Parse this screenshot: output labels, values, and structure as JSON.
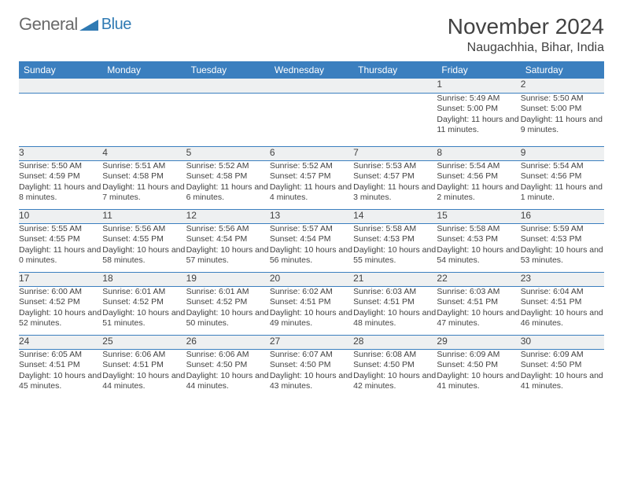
{
  "logo": {
    "part1": "General",
    "part2": "Blue"
  },
  "title": "November 2024",
  "location": "Naugachhia, Bihar, India",
  "colors": {
    "header_bg": "#3b7fbf",
    "header_fg": "#ffffff",
    "daynum_bg": "#eef0f1",
    "border": "#3b7fbf",
    "text": "#424242",
    "logo_gray": "#6a6a6a",
    "logo_blue": "#2f7ab3",
    "page_bg": "#ffffff"
  },
  "weekdays": [
    "Sunday",
    "Monday",
    "Tuesday",
    "Wednesday",
    "Thursday",
    "Friday",
    "Saturday"
  ],
  "weeks": [
    [
      null,
      null,
      null,
      null,
      null,
      {
        "n": "1",
        "sr": "5:49 AM",
        "ss": "5:00 PM",
        "dl": "11 hours and 11 minutes."
      },
      {
        "n": "2",
        "sr": "5:50 AM",
        "ss": "5:00 PM",
        "dl": "11 hours and 9 minutes."
      }
    ],
    [
      {
        "n": "3",
        "sr": "5:50 AM",
        "ss": "4:59 PM",
        "dl": "11 hours and 8 minutes."
      },
      {
        "n": "4",
        "sr": "5:51 AM",
        "ss": "4:58 PM",
        "dl": "11 hours and 7 minutes."
      },
      {
        "n": "5",
        "sr": "5:52 AM",
        "ss": "4:58 PM",
        "dl": "11 hours and 6 minutes."
      },
      {
        "n": "6",
        "sr": "5:52 AM",
        "ss": "4:57 PM",
        "dl": "11 hours and 4 minutes."
      },
      {
        "n": "7",
        "sr": "5:53 AM",
        "ss": "4:57 PM",
        "dl": "11 hours and 3 minutes."
      },
      {
        "n": "8",
        "sr": "5:54 AM",
        "ss": "4:56 PM",
        "dl": "11 hours and 2 minutes."
      },
      {
        "n": "9",
        "sr": "5:54 AM",
        "ss": "4:56 PM",
        "dl": "11 hours and 1 minute."
      }
    ],
    [
      {
        "n": "10",
        "sr": "5:55 AM",
        "ss": "4:55 PM",
        "dl": "11 hours and 0 minutes."
      },
      {
        "n": "11",
        "sr": "5:56 AM",
        "ss": "4:55 PM",
        "dl": "10 hours and 58 minutes."
      },
      {
        "n": "12",
        "sr": "5:56 AM",
        "ss": "4:54 PM",
        "dl": "10 hours and 57 minutes."
      },
      {
        "n": "13",
        "sr": "5:57 AM",
        "ss": "4:54 PM",
        "dl": "10 hours and 56 minutes."
      },
      {
        "n": "14",
        "sr": "5:58 AM",
        "ss": "4:53 PM",
        "dl": "10 hours and 55 minutes."
      },
      {
        "n": "15",
        "sr": "5:58 AM",
        "ss": "4:53 PM",
        "dl": "10 hours and 54 minutes."
      },
      {
        "n": "16",
        "sr": "5:59 AM",
        "ss": "4:53 PM",
        "dl": "10 hours and 53 minutes."
      }
    ],
    [
      {
        "n": "17",
        "sr": "6:00 AM",
        "ss": "4:52 PM",
        "dl": "10 hours and 52 minutes."
      },
      {
        "n": "18",
        "sr": "6:01 AM",
        "ss": "4:52 PM",
        "dl": "10 hours and 51 minutes."
      },
      {
        "n": "19",
        "sr": "6:01 AM",
        "ss": "4:52 PM",
        "dl": "10 hours and 50 minutes."
      },
      {
        "n": "20",
        "sr": "6:02 AM",
        "ss": "4:51 PM",
        "dl": "10 hours and 49 minutes."
      },
      {
        "n": "21",
        "sr": "6:03 AM",
        "ss": "4:51 PM",
        "dl": "10 hours and 48 minutes."
      },
      {
        "n": "22",
        "sr": "6:03 AM",
        "ss": "4:51 PM",
        "dl": "10 hours and 47 minutes."
      },
      {
        "n": "23",
        "sr": "6:04 AM",
        "ss": "4:51 PM",
        "dl": "10 hours and 46 minutes."
      }
    ],
    [
      {
        "n": "24",
        "sr": "6:05 AM",
        "ss": "4:51 PM",
        "dl": "10 hours and 45 minutes."
      },
      {
        "n": "25",
        "sr": "6:06 AM",
        "ss": "4:51 PM",
        "dl": "10 hours and 44 minutes."
      },
      {
        "n": "26",
        "sr": "6:06 AM",
        "ss": "4:50 PM",
        "dl": "10 hours and 44 minutes."
      },
      {
        "n": "27",
        "sr": "6:07 AM",
        "ss": "4:50 PM",
        "dl": "10 hours and 43 minutes."
      },
      {
        "n": "28",
        "sr": "6:08 AM",
        "ss": "4:50 PM",
        "dl": "10 hours and 42 minutes."
      },
      {
        "n": "29",
        "sr": "6:09 AM",
        "ss": "4:50 PM",
        "dl": "10 hours and 41 minutes."
      },
      {
        "n": "30",
        "sr": "6:09 AM",
        "ss": "4:50 PM",
        "dl": "10 hours and 41 minutes."
      }
    ]
  ],
  "labels": {
    "sunrise": "Sunrise: ",
    "sunset": "Sunset: ",
    "daylight": "Daylight: "
  }
}
